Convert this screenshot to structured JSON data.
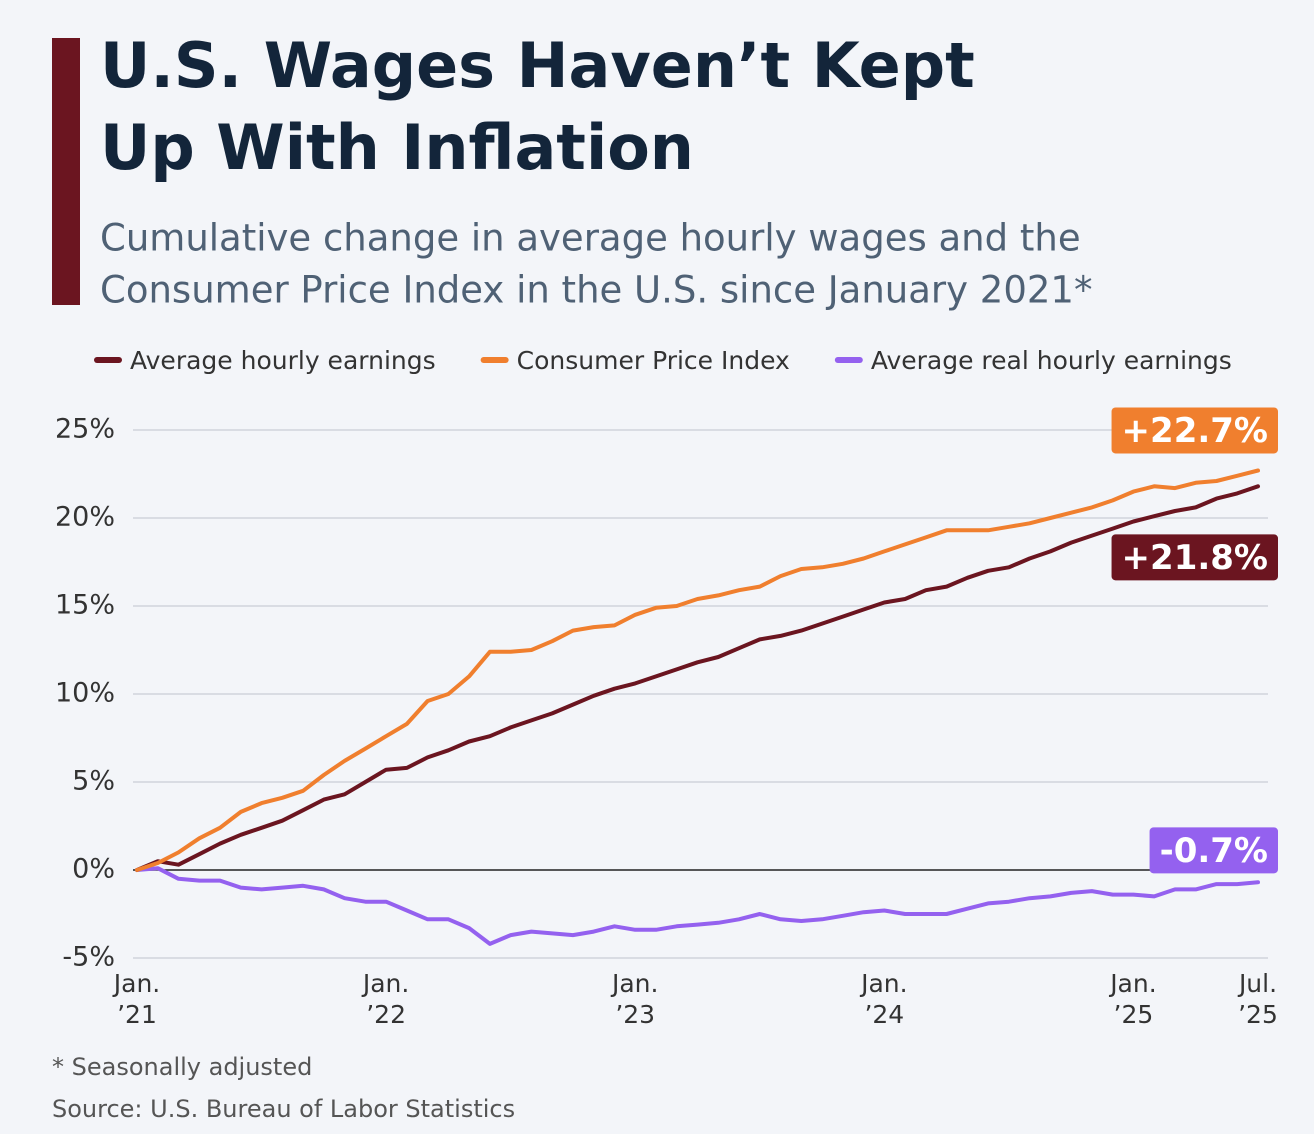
{
  "chart_data": {
    "type": "line",
    "title_lines": [
      "U.S. Wages Haven’t Kept",
      "Up With Inflation"
    ],
    "subtitle_lines": [
      "Cumulative change in average hourly wages and the",
      "Consumer Price Index in the U.S. since January 2021*"
    ],
    "categories": [
      "Jan.\n’21",
      null,
      null,
      null,
      null,
      null,
      null,
      null,
      null,
      null,
      null,
      null,
      "Jan.\n’22",
      null,
      null,
      null,
      null,
      null,
      null,
      null,
      null,
      null,
      null,
      null,
      "Jan.\n’23",
      null,
      null,
      null,
      null,
      null,
      null,
      null,
      null,
      null,
      null,
      null,
      "Jan.\n’24",
      null,
      null,
      null,
      null,
      null,
      null,
      null,
      null,
      null,
      null,
      null,
      "Jan.\n’25",
      null,
      null,
      null,
      null,
      null,
      "Jul.\n’25"
    ],
    "series": [
      {
        "name": "Average hourly earnings",
        "color": "#6b1520",
        "end_label": "+21.8%",
        "values": [
          0,
          0.5,
          0.3,
          0.9,
          1.5,
          2.0,
          2.4,
          2.8,
          3.4,
          4.0,
          4.3,
          5.0,
          5.7,
          5.8,
          6.4,
          6.8,
          7.3,
          7.6,
          8.1,
          8.5,
          8.9,
          9.4,
          9.9,
          10.3,
          10.6,
          11.0,
          11.4,
          11.8,
          12.1,
          12.6,
          13.1,
          13.3,
          13.6,
          14.0,
          14.4,
          14.8,
          15.2,
          15.4,
          15.9,
          16.1,
          16.6,
          17.0,
          17.2,
          17.7,
          18.1,
          18.6,
          19.0,
          19.4,
          19.8,
          20.1,
          20.4,
          20.6,
          21.1,
          21.4,
          21.8
        ]
      },
      {
        "name": "Consumer Price Index",
        "color": "#f07f2e",
        "end_label": "+22.7%",
        "values": [
          0,
          0.4,
          1.0,
          1.8,
          2.4,
          3.3,
          3.8,
          4.1,
          4.5,
          5.4,
          6.2,
          6.9,
          7.6,
          8.3,
          9.6,
          10.0,
          11.0,
          12.4,
          12.4,
          12.5,
          13.0,
          13.6,
          13.8,
          13.9,
          14.5,
          14.9,
          15.0,
          15.4,
          15.6,
          15.9,
          16.1,
          16.7,
          17.1,
          17.2,
          17.4,
          17.7,
          18.1,
          18.5,
          18.9,
          19.3,
          19.3,
          19.3,
          19.5,
          19.7,
          20.0,
          20.3,
          20.6,
          21.0,
          21.5,
          21.8,
          21.7,
          22.0,
          22.1,
          22.4,
          22.7
        ]
      },
      {
        "name": "Average real hourly earnings",
        "color": "#9461ef",
        "end_label": "-0.7%",
        "values": [
          0,
          0.1,
          -0.5,
          -0.6,
          -0.6,
          -1.0,
          -1.1,
          -1.0,
          -0.9,
          -1.1,
          -1.6,
          -1.8,
          -1.8,
          -2.3,
          -2.8,
          -2.8,
          -3.3,
          -4.2,
          -3.7,
          -3.5,
          -3.6,
          -3.7,
          -3.5,
          -3.2,
          -3.4,
          -3.4,
          -3.2,
          -3.1,
          -3.0,
          -2.8,
          -2.5,
          -2.8,
          -2.9,
          -2.8,
          -2.6,
          -2.4,
          -2.3,
          -2.5,
          -2.5,
          -2.5,
          -2.2,
          -1.9,
          -1.8,
          -1.6,
          -1.5,
          -1.3,
          -1.2,
          -1.4,
          -1.4,
          -1.5,
          -1.1,
          -1.1,
          -0.8,
          -0.8,
          -0.7
        ]
      }
    ],
    "ylim": [
      -5,
      25
    ],
    "yticks": [
      {
        "value": -5,
        "label": "-5%"
      },
      {
        "value": 0,
        "label": "0%"
      },
      {
        "value": 5,
        "label": "5%"
      },
      {
        "value": 10,
        "label": "10%"
      },
      {
        "value": 15,
        "label": "15%"
      },
      {
        "value": 20,
        "label": "20%"
      },
      {
        "value": 25,
        "label": "25%"
      }
    ],
    "grid": true,
    "notes": [
      "* Seasonally adjusted",
      "Source: U.S. Bureau of Labor Statistics"
    ]
  }
}
